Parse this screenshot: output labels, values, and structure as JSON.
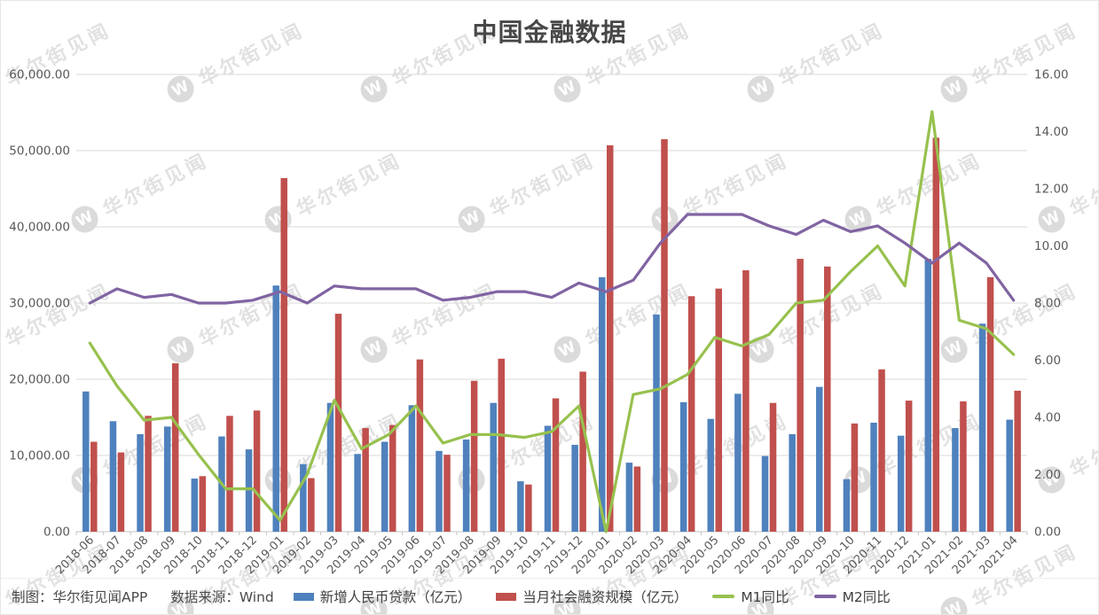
{
  "title": "中国金融数据",
  "watermark": {
    "logo_letter": "W",
    "text": "华尔街见闻"
  },
  "footer": {
    "credit": "制图：华尔街见闻APP",
    "source": "数据来源：Wind"
  },
  "colors": {
    "loans_bar": "#4F81BD",
    "tsf_bar": "#C0504D",
    "m1_line": "#97C14E",
    "m2_line": "#8064A2",
    "grid_line": "#D9D9D9",
    "axis_line": "#C6C6C6",
    "axis_text": "#595959",
    "title_text": "#474747",
    "watermark": "#E1E1E1"
  },
  "chart_data": {
    "type": "bar+line-combo",
    "title": "中国金融数据",
    "grid": "horizontal-left-axis-only",
    "legend_position": "bottom",
    "categories": [
      "2018-06",
      "2018-07",
      "2018-08",
      "2018-09",
      "2018-10",
      "2018-11",
      "2018-12",
      "2019-01",
      "2019-02",
      "2019-03",
      "2019-04",
      "2019-05",
      "2019-06",
      "2019-07",
      "2019-08",
      "2019-09",
      "2019-10",
      "2019-11",
      "2019-12",
      "2020-01",
      "2020-02",
      "2020-03",
      "2020-04",
      "2020-05",
      "2020-06",
      "2020-07",
      "2020-08",
      "2020-09",
      "2020-10",
      "2020-11",
      "2020-12",
      "2021-01",
      "2021-02",
      "2021-03",
      "2021-04"
    ],
    "series": [
      {
        "id": "loans",
        "name": "新增人民币贷款（亿元）",
        "type": "bar",
        "axis": "left",
        "color": "#4F81BD",
        "values": [
          18400,
          14500,
          12800,
          13800,
          6970,
          12500,
          10800,
          32300,
          8858,
          16900,
          10200,
          11800,
          16600,
          10600,
          12100,
          16900,
          6613,
          13900,
          11400,
          33400,
          9057,
          28500,
          17000,
          14800,
          18100,
          9927,
          12800,
          19000,
          6898,
          14300,
          12600,
          35800,
          13600,
          27300,
          14700
        ]
      },
      {
        "id": "tsf",
        "name": "当月社会融资规模（亿元）",
        "type": "bar",
        "axis": "left",
        "color": "#C0504D",
        "values": [
          11800,
          10400,
          15200,
          22100,
          7288,
          15200,
          15900,
          46400,
          7030,
          28600,
          13600,
          14000,
          22600,
          10100,
          19800,
          22700,
          6189,
          17500,
          21000,
          50700,
          8554,
          51500,
          30900,
          31900,
          34300,
          16900,
          35800,
          34800,
          14200,
          21300,
          17200,
          51700,
          17100,
          33400,
          18500
        ]
      },
      {
        "id": "m1",
        "name": "M1同比",
        "type": "line",
        "axis": "right",
        "color": "#97C14E",
        "values": [
          6.6,
          5.1,
          3.9,
          4.0,
          2.7,
          1.5,
          1.5,
          0.4,
          2.0,
          4.6,
          2.9,
          3.4,
          4.4,
          3.1,
          3.4,
          3.4,
          3.3,
          3.5,
          4.4,
          0.0,
          4.8,
          5.0,
          5.5,
          6.8,
          6.5,
          6.9,
          8.0,
          8.1,
          9.1,
          10.0,
          8.6,
          14.7,
          7.4,
          7.1,
          6.2
        ]
      },
      {
        "id": "m2",
        "name": "M2同比",
        "type": "line",
        "axis": "right",
        "color": "#8064A2",
        "values": [
          8.0,
          8.5,
          8.2,
          8.3,
          8.0,
          8.0,
          8.1,
          8.4,
          8.0,
          8.6,
          8.5,
          8.5,
          8.5,
          8.1,
          8.2,
          8.4,
          8.4,
          8.2,
          8.7,
          8.4,
          8.8,
          10.1,
          11.1,
          11.1,
          11.1,
          10.7,
          10.4,
          10.9,
          10.5,
          10.7,
          10.1,
          9.4,
          10.1,
          9.4,
          8.1
        ]
      }
    ],
    "left_axis": {
      "min": 0,
      "max": 60000,
      "step": 10000,
      "tick_labels": [
        "0.00",
        "10,000.00",
        "20,000.00",
        "30,000.00",
        "40,000.00",
        "50,000.00",
        "60,000.00"
      ]
    },
    "right_axis": {
      "min": 0,
      "max": 16,
      "step": 2,
      "tick_labels": [
        "0.00",
        "2.00",
        "4.00",
        "6.00",
        "8.00",
        "10.00",
        "12.00",
        "14.00",
        "16.00"
      ]
    }
  }
}
